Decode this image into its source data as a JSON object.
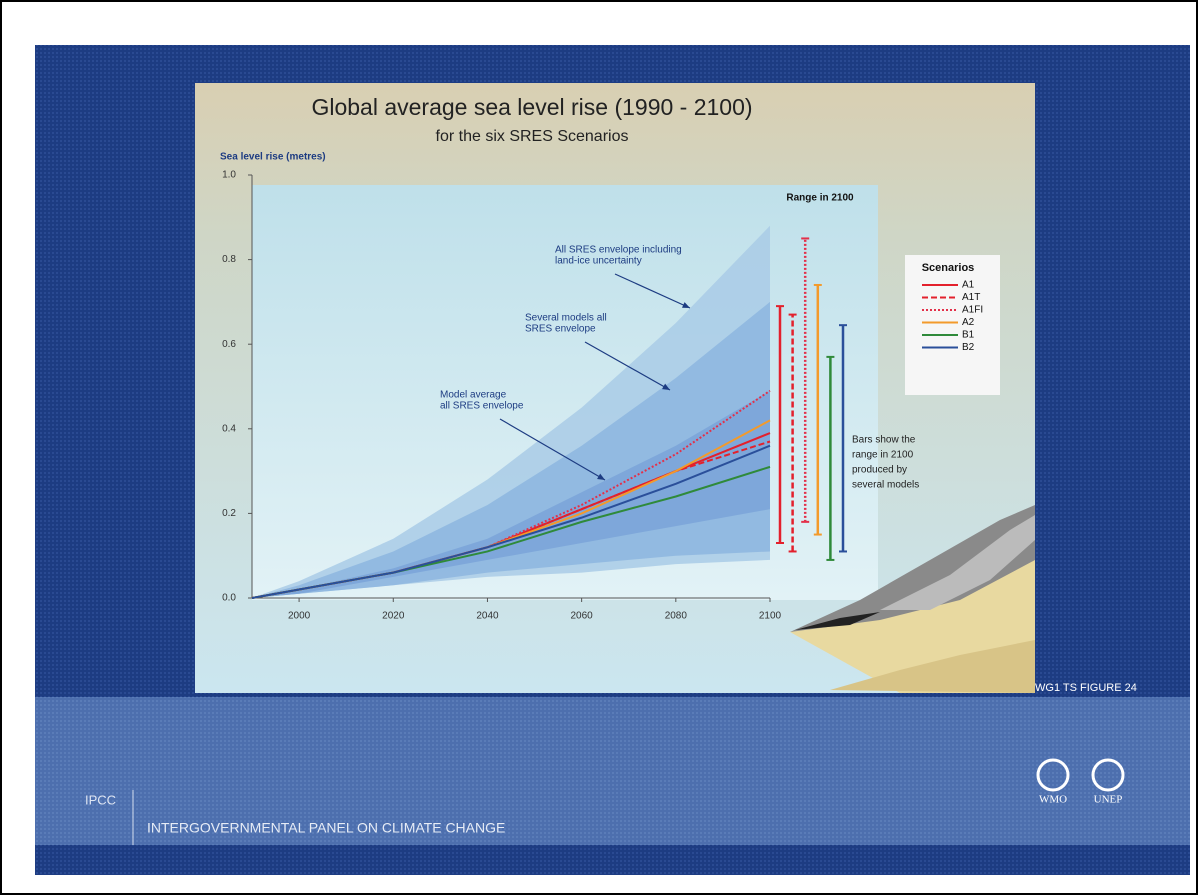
{
  "chart_data": {
    "type": "line",
    "title": "Global average sea level rise (1990 - 2100)",
    "subtitle": "for the six SRES Scenarios",
    "y_label": "Sea level rise (metres)",
    "xlim": [
      1990,
      2100
    ],
    "xticks": [
      2000,
      2020,
      2040,
      2060,
      2080,
      2100
    ],
    "ylim": [
      0,
      1
    ],
    "yticks": [
      {
        "value": 0,
        "label": "0.0"
      },
      0.2,
      0.4,
      0.6,
      0.8,
      {
        "value": 1,
        "label": "1.0"
      }
    ],
    "x": [
      1990,
      2000,
      2020,
      2040,
      2060,
      2080,
      2100
    ],
    "envelopes": [
      {
        "upper": [
          0,
          0.04,
          0.14,
          0.28,
          0.45,
          0.65,
          0.88
        ],
        "lower": [
          0,
          0.01,
          0.03,
          0.05,
          0.06,
          0.08,
          0.09
        ],
        "color": "#a9cbe6"
      },
      {
        "upper": [
          0,
          0.03,
          0.11,
          0.22,
          0.36,
          0.52,
          0.7
        ],
        "lower": [
          0,
          0.01,
          0.03,
          0.06,
          0.08,
          0.1,
          0.11
        ],
        "color": "#8db6df"
      },
      {
        "upper": [
          0,
          0.02,
          0.07,
          0.14,
          0.25,
          0.36,
          0.49
        ],
        "lower": [
          0,
          0.01,
          0.05,
          0.09,
          0.13,
          0.17,
          0.21
        ],
        "color": "#7aa3d8"
      }
    ],
    "series": [
      {
        "name": "A1",
        "color": "#e3202c",
        "dash": "solid",
        "values": [
          0,
          0.02,
          0.06,
          0.12,
          0.21,
          0.3,
          0.39
        ],
        "range_2100": [
          0.13,
          0.69
        ]
      },
      {
        "name": "A1T",
        "color": "#e3202c",
        "dash": "dashed",
        "values": [
          0,
          0.02,
          0.06,
          0.12,
          0.21,
          0.3,
          0.37
        ],
        "range_2100": [
          0.11,
          0.67
        ]
      },
      {
        "name": "A1FI",
        "color": "#e3304a",
        "dash": "dotted",
        "values": [
          0,
          0.02,
          0.06,
          0.12,
          0.22,
          0.34,
          0.49
        ],
        "range_2100": [
          0.18,
          0.85
        ]
      },
      {
        "name": "A2",
        "color": "#f39a2b",
        "dash": "solid",
        "values": [
          0,
          0.02,
          0.06,
          0.12,
          0.2,
          0.3,
          0.42
        ],
        "range_2100": [
          0.15,
          0.74
        ]
      },
      {
        "name": "B1",
        "color": "#2f8a3a",
        "dash": "solid",
        "values": [
          0,
          0.02,
          0.06,
          0.11,
          0.18,
          0.24,
          0.31
        ],
        "range_2100": [
          0.09,
          0.57
        ]
      },
      {
        "name": "B2",
        "color": "#2a4f9a",
        "dash": "solid",
        "values": [
          0,
          0.02,
          0.06,
          0.12,
          0.19,
          0.27,
          0.36
        ],
        "range_2100": [
          0.11,
          0.645
        ]
      }
    ],
    "legend_title": "Scenarios",
    "range_title": "Range in 2100",
    "range_note": [
      "Bars show  the",
      "range in 2100",
      "produced by",
      "several models"
    ],
    "annotations": [
      {
        "text": [
          "All SRES envelope including",
          "land-ice uncertainty"
        ]
      },
      {
        "text": [
          "Several models all",
          "SRES envelope"
        ]
      },
      {
        "text": [
          "Model average",
          "all SRES envelope"
        ]
      }
    ]
  },
  "slide": {
    "figure_label": "WG1 TS FIGURE 24",
    "org_short": "IPCC",
    "org_full": "INTERGOVERNMENTAL PANEL ON CLIMATE CHANGE",
    "logos": [
      "WMO",
      "UNEP"
    ]
  }
}
